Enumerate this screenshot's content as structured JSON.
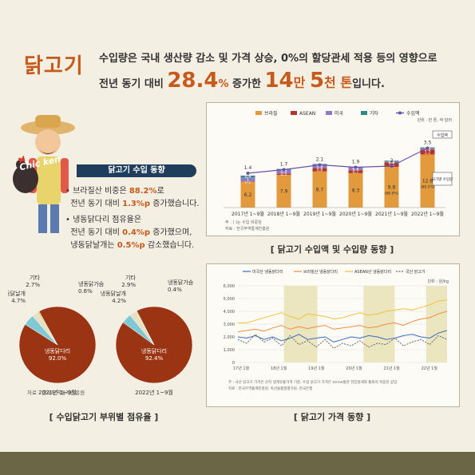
{
  "header": {
    "title": "닭고기",
    "line1": "수입량은 국내 생산량 감소 및 가격 상승, 0%의 할당관세 적용 등의 영향으로",
    "line2_pre": "전년 동기 대비 ",
    "line2_pct": "28.4",
    "line2_pct_unit": "%",
    "line2_mid": " 증가한 ",
    "line2_n1": "14",
    "line2_u1": "만 ",
    "line2_n2": "5",
    "line2_u2": "천 톤",
    "line2_post": "입니다."
  },
  "trend": {
    "banner": "닭고기 수입 동향",
    "b1_a": "• 브라질산 비중은 ",
    "b1_v": "88.2%",
    "b1_b": "로",
    "b1_c": "전년 동기 대비 ",
    "b1_d": "1.3%p",
    "b1_e": " 증가했습니다.",
    "b2_a": "• 냉동닭다리 점유율은",
    "b2_b": "전년 동기 대비 ",
    "b2_c": "0.4%p",
    "b2_d": " 증가했으며,",
    "b2_e": "냉동닭날개는 ",
    "b2_f": "0.5%p",
    "b2_g": " 감소했습니다."
  },
  "logo_text": "Chic ken",
  "captions": {
    "import": "[ 닭고기 수입액 및 수입량 동향 ]",
    "share": "[ 수입닭고기 부위별 점유율 ]",
    "price": "[ 닭고기 가격 동향 ]"
  },
  "colors": {
    "brazil": "#e39a3c",
    "asean": "#b5332c",
    "usa": "#8e7cc3",
    "other": "#2e8b84",
    "line": "#6a4fa8",
    "pie_leg": "#9b3412",
    "pie_wing": "#7fc8d6",
    "pie_breast": "#c8c35a",
    "pie_other": "#e8e0c0",
    "price_usa": "#3b6cc0",
    "price_brazil": "#f08c3a",
    "price_asean": "#f0c23a",
    "price_domestic": "#666666",
    "shade": "#ece6bf"
  },
  "chart_data": [
    {
      "type": "bar",
      "title": "닭고기 수입액 및 수입량 동향",
      "unit_note": "단위 : 만 톤, 억 달러",
      "categories": [
        "2017년 1~9월",
        "2018년 1~9월",
        "2019년 1~9월",
        "2020년 1~9월",
        "2021년 1~9월",
        "2022년 1~9월"
      ],
      "series": [
        {
          "name": "브라질",
          "values": [
            6.2,
            7.9,
            8.7,
            8.3,
            9.8,
            12.8
          ]
        },
        {
          "name": "ASEAN",
          "values": [
            0.1,
            0.3,
            0.8,
            0.7,
            1.1,
            1.2
          ]
        },
        {
          "name": "미국",
          "values": [
            1.0,
            0.9,
            0.8,
            0.6,
            0.2,
            0.3
          ]
        },
        {
          "name": "기타",
          "values": [
            0.4,
            0.2,
            0.2,
            0.1,
            0.2,
            0.2
          ]
        }
      ],
      "line": {
        "name": "수입액",
        "values": [
          1.4,
          1.7,
          2.1,
          1.9,
          2.0,
          3.5
        ]
      },
      "bar_labels": [
        "6.2",
        "7.9",
        "8.7",
        "8.3",
        "9.8",
        "12.8"
      ],
      "bar_sublabels": [
        "",
        "",
        "",
        "",
        "(86.9%)",
        "(88.2%)"
      ],
      "annotation_value": "수입액",
      "annotation_volume": "국가별 수입량",
      "source_1": "주 : ( )는 수입 비중임",
      "source_2": "자료 : 한국무역통계진흥원",
      "ylim": [
        0,
        16
      ]
    },
    {
      "type": "pie",
      "title": "2021년 1~9월",
      "slices": [
        {
          "name": "냉동닭다리",
          "value": 92.0,
          "label": "92.0%"
        },
        {
          "name": "냉동닭날개",
          "value": 4.7,
          "label": "4.7%"
        },
        {
          "name": "기타",
          "value": 2.7,
          "label": "2.7%"
        },
        {
          "name": "냉동닭가슴",
          "value": 0.6,
          "label": "0.6%"
        }
      ]
    },
    {
      "type": "pie",
      "title": "2022년 1~9월",
      "slices": [
        {
          "name": "냉동닭다리",
          "value": 92.4,
          "label": "92.4%"
        },
        {
          "name": "냉동닭날개",
          "value": 4.2,
          "label": "4.2%"
        },
        {
          "name": "기타",
          "value": 2.9,
          "label": "2.9%"
        },
        {
          "name": "냉동닭가슴",
          "value": 0.4,
          "label": "0.4%"
        }
      ],
      "source": "자료 : 한국무역통계진흥원"
    },
    {
      "type": "line",
      "title": "닭고기 가격 동향",
      "unit_note": "단위 : 원/kg",
      "x_ticks": [
        "17년 1월",
        "18년 1월",
        "19년 1월",
        "20년 1월",
        "21년 1월",
        "22년 1월"
      ],
      "ylim": [
        0,
        6000
      ],
      "y_ticks": [
        0,
        1000,
        2000,
        3000,
        4000,
        5000,
        6000
      ],
      "shaded_ranges": [
        [
          0.22,
          0.38
        ],
        [
          0.6,
          0.75
        ],
        [
          0.9,
          1.0
        ]
      ],
      "series": [
        {
          "name": "미국산 냉동닭다리",
          "values": [
            2000,
            1900,
            2100,
            1800,
            2000,
            1700,
            1900,
            2200,
            1800,
            1900,
            2000,
            1600,
            1800,
            2000,
            1900,
            2100,
            2000,
            1800,
            1900,
            2100,
            2200,
            2000,
            1900,
            2300,
            2500
          ]
        },
        {
          "name": "브라질산 냉동닭다리",
          "values": [
            2400,
            2500,
            2600,
            2450,
            2700,
            2900,
            2600,
            2800,
            2650,
            2800,
            2900,
            2600,
            2700,
            2800,
            2900,
            2700,
            2800,
            3000,
            3100,
            2900,
            3200,
            3400,
            3500,
            3800,
            4000
          ]
        },
        {
          "name": "ASEAN산 냉동닭다리",
          "values": [
            3100,
            3100,
            3300,
            3500,
            3700,
            3900,
            3600,
            3400,
            3800,
            3700,
            3600,
            3400,
            3500,
            3700,
            3900,
            3700,
            3800,
            4000,
            4100,
            4200,
            4100,
            4300,
            4500,
            4800,
            4900
          ]
        },
        {
          "name": "국산 닭고기",
          "values": [
            1800,
            1500,
            2200,
            1600,
            1900,
            1300,
            2100,
            1400,
            1700,
            1200,
            1800,
            1100,
            1500,
            1300,
            1700,
            1200,
            1500,
            1400,
            1900,
            1300,
            1600,
            1800,
            1400,
            2100,
            1800
          ]
        }
      ],
      "note_1": "주 : 국산 닭고기 가격은 산지 생계유통가격 기준, 수입 닭고기 가격은 tonne통관 현장원세와 통화의 적용된 값임",
      "note_2": "자료 : 한국무역통계진흥원, 축산물품질평가원, 한국은행"
    }
  ]
}
